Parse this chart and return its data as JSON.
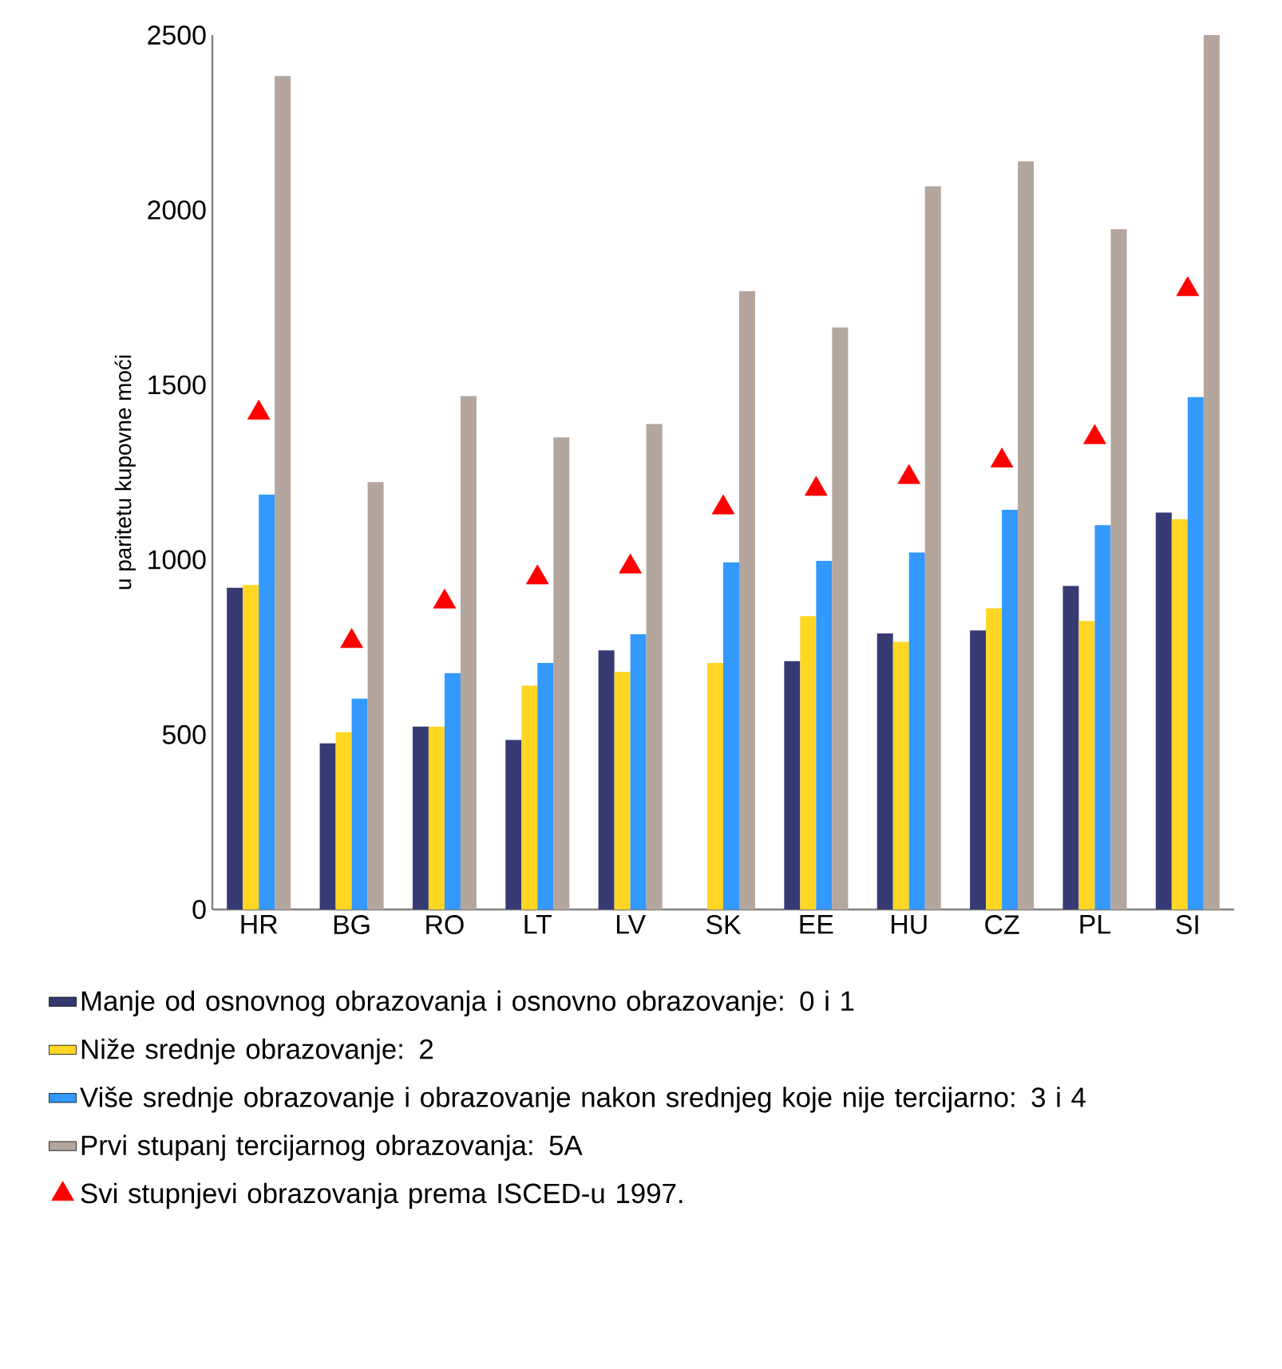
{
  "chart_data": {
    "type": "bar",
    "ylabel": "u paritetu kupovne moći",
    "categories": [
      "HR",
      "BG",
      "RO",
      "LT",
      "LV",
      "SK",
      "EE",
      "HU",
      "CZ",
      "PL",
      "SI"
    ],
    "ylim": [
      0,
      2500
    ],
    "yticks": [
      0,
      500,
      1000,
      1500,
      2000,
      2500
    ],
    "legend": "bottom",
    "grid": false,
    "series": [
      {
        "name": "Manje od osnovnog obrazovanja i osnovno obrazovanje: 0 i 1",
        "color": "#363a73",
        "values": [
          920,
          475,
          523,
          485,
          741,
          null,
          710,
          789,
          798,
          925,
          1135
        ]
      },
      {
        "name": "Niže srednje obrazovanje: 2",
        "color": "#ffd624",
        "values": [
          928,
          507,
          523,
          640,
          679,
          705,
          839,
          765,
          861,
          825,
          1116
        ]
      },
      {
        "name": "Više srednje obrazovanje i obrazovanje nakon srednjeg koje nije tercijarno: 3 i 4",
        "color": "#3399ff",
        "values": [
          1186,
          603,
          676,
          705,
          787,
          992,
          997,
          1021,
          1143,
          1099,
          1465
        ]
      },
      {
        "name": "Prvi stupanj tercijarnog obrazovanja: 5A",
        "color": "#b4a59d",
        "values": [
          2383,
          1222,
          1468,
          1350,
          1388,
          1768,
          1664,
          2068,
          2139,
          1945,
          2500
        ]
      },
      {
        "name": "Svi stupnjevi obrazovanja prema ISCED-u 1997.",
        "type": "scatter",
        "marker": "triangle",
        "color": "#ff0000",
        "x": [
          "HR",
          "BG",
          "RO",
          "LT",
          "LV",
          "SK",
          "EE",
          "HU",
          "CZ",
          "PL",
          "SI"
        ],
        "values": [
          1420,
          767,
          880,
          949,
          980,
          1149,
          1202,
          1236,
          1283,
          1350,
          1773
        ]
      }
    ]
  }
}
